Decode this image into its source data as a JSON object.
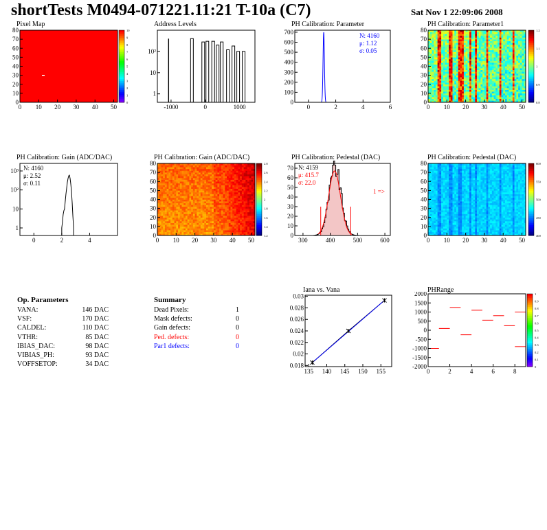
{
  "header": {
    "title": "shortTests M0494-071221.11:21 T-10a (C7)",
    "date": "Sat Nov  1 22:09:06 2008"
  },
  "colors": {
    "frame": "#000000",
    "line_blue": "#0000ff",
    "line_red": "#ff0000",
    "fill_red": "#ff0000"
  },
  "chart_data": [
    {
      "id": "pixel_map",
      "type": "heatmap",
      "title": "Pixel Map",
      "xlim": [
        0,
        52
      ],
      "ylim": [
        0,
        80
      ],
      "xticks": [
        "0",
        "10",
        "20",
        "30",
        "40",
        "50"
      ],
      "yticks": [
        "0",
        "10",
        "20",
        "30",
        "40",
        "50",
        "60",
        "70",
        "80"
      ],
      "zticks": [
        "0",
        "1",
        "2",
        "3",
        "4",
        "5",
        "6",
        "7",
        "8",
        "9",
        "10"
      ],
      "value": 10
    },
    {
      "id": "address_levels",
      "type": "bar",
      "title": "Address Levels",
      "log_y": true,
      "xticks": [
        "-1000",
        "0",
        "1000"
      ],
      "yticks": [
        "1",
        "10",
        "10²"
      ],
      "peaks": [
        {
          "x": -450,
          "y": 400
        },
        {
          "x": -120,
          "y": 280
        },
        {
          "x": 0,
          "y": 300
        },
        {
          "x": 170,
          "y": 300
        },
        {
          "x": 300,
          "y": 200
        },
        {
          "x": 420,
          "y": 280
        },
        {
          "x": 600,
          "y": 120
        },
        {
          "x": 760,
          "y": 180
        },
        {
          "x": 900,
          "y": 100
        },
        {
          "x": 1060,
          "y": 100
        }
      ]
    },
    {
      "id": "ph_param",
      "type": "bar",
      "title": "PH Calibration: Parameter",
      "xlim": [
        -1,
        6
      ],
      "ylim": [
        0,
        720
      ],
      "xticks": [
        "0",
        "2",
        "4",
        "6"
      ],
      "yticks": [
        "0",
        "100",
        "200",
        "300",
        "400",
        "500",
        "600",
        "700"
      ],
      "stats": {
        "n": "N: 4160",
        "mu": "μ: 1.12",
        "sigma": "σ: 0.05"
      },
      "peak": {
        "mean": 1.12,
        "sigma": 0.05,
        "height": 700
      }
    },
    {
      "id": "ph_param1",
      "type": "heatmap",
      "title": "PH Calibration: Parameter1",
      "xlim": [
        0,
        52
      ],
      "ylim": [
        0,
        80
      ],
      "xticks": [
        "0",
        "10",
        "20",
        "30",
        "40",
        "50"
      ],
      "yticks": [
        "0",
        "10",
        "20",
        "30",
        "40",
        "50",
        "60",
        "70",
        "80"
      ],
      "zticks": [
        "0.8",
        "0.9",
        "1",
        "1.1",
        "1.2"
      ]
    },
    {
      "id": "ph_gain_hist",
      "type": "line",
      "title": "PH Calibration: Gain (ADC/DAC)",
      "log_y": true,
      "xticks": [
        "0",
        "2",
        "4"
      ],
      "yticks": [
        "1",
        "10",
        "10²",
        "10³"
      ],
      "stats": {
        "n": "N: 4160",
        "mu": "μ: 2.52",
        "sigma": "σ: 0.11"
      }
    },
    {
      "id": "ph_gain_map",
      "type": "heatmap",
      "title": "PH Calibration: Gain (ADC/DAC)",
      "xlim": [
        0,
        52
      ],
      "ylim": [
        0,
        80
      ],
      "xticks": [
        "0",
        "10",
        "20",
        "30",
        "40",
        "50"
      ],
      "yticks": [
        "0",
        "10",
        "20",
        "30",
        "40",
        "50",
        "60",
        "70",
        "80"
      ],
      "zticks": [
        "1.2",
        "1.4",
        "1.6",
        "1.8",
        "2",
        "2.2",
        "2.4",
        "2.6",
        "2.8"
      ]
    },
    {
      "id": "ph_ped_hist",
      "type": "bar",
      "title": "PH Calibration: Pedestal (DAC)",
      "xlim": [
        270,
        620
      ],
      "ylim": [
        0,
        75
      ],
      "xticks": [
        "300",
        "400",
        "500",
        "600"
      ],
      "yticks": [
        "0",
        "10",
        "20",
        "30",
        "40",
        "50",
        "60",
        "70"
      ],
      "stats": {
        "n": "N: 4159",
        "mu": "μ: 415.7",
        "sigma": "σ: 22.0"
      },
      "arrow": "1 =>",
      "peak": {
        "mean": 415.7,
        "sigma": 22.0,
        "height": 70
      }
    },
    {
      "id": "ph_ped_map",
      "type": "heatmap",
      "title": "PH Calibration: Pedestal (DAC)",
      "xlim": [
        0,
        52
      ],
      "ylim": [
        0,
        80
      ],
      "xticks": [
        "0",
        "10",
        "20",
        "30",
        "40",
        "50"
      ],
      "yticks": [
        "0",
        "10",
        "20",
        "30",
        "40",
        "50",
        "60",
        "70",
        "80"
      ],
      "zticks": [
        "400",
        "450",
        "500",
        "550",
        "600"
      ]
    },
    {
      "id": "iana_vana",
      "type": "line",
      "title": "Iana vs. Vana",
      "xlim": [
        134,
        158
      ],
      "ylim": [
        0.0178,
        0.0302
      ],
      "xticks": [
        "135",
        "140",
        "145",
        "150",
        "155"
      ],
      "yticks": [
        "0.018",
        "0.02",
        "0.022",
        "0.024",
        "0.026",
        "0.028",
        "0.03"
      ],
      "x": [
        136,
        146,
        156
      ],
      "y": [
        0.0185,
        0.024,
        0.0293
      ]
    },
    {
      "id": "ph_range",
      "type": "line",
      "title": "PHRange",
      "xlim": [
        0,
        9
      ],
      "ylim": [
        -2000,
        2000
      ],
      "xticks": [
        "0",
        "2",
        "4",
        "6",
        "8"
      ],
      "yticks": [
        "-2000",
        "-1500",
        "-1000",
        "-500",
        "0",
        "500",
        "1000",
        "1500",
        "2000"
      ],
      "zticks": [
        "0",
        "0.1",
        "0.2",
        "0.3",
        "0.4",
        "0.5",
        "0.6",
        "0.7",
        "0.8",
        "0.9",
        "1"
      ],
      "segments": [
        {
          "x": 0,
          "y": -1000
        },
        {
          "x": 1,
          "y": 100
        },
        {
          "x": 2,
          "y": 1250
        },
        {
          "x": 3,
          "y": -250
        },
        {
          "x": 4,
          "y": 1100
        },
        {
          "x": 5,
          "y": 550
        },
        {
          "x": 6,
          "y": 800
        },
        {
          "x": 7,
          "y": 250
        },
        {
          "x": 8,
          "y": 1000
        },
        {
          "x": 8,
          "y": -900
        }
      ]
    }
  ],
  "op_params": {
    "title": "Op. Parameters",
    "rows": [
      {
        "name": "VANA:",
        "value": "146 DAC"
      },
      {
        "name": "VSF:",
        "value": "170 DAC"
      },
      {
        "name": "CALDEL:",
        "value": "110 DAC"
      },
      {
        "name": "VTHR:",
        "value": "85 DAC"
      },
      {
        "name": "IBIAS_DAC:",
        "value": "98 DAC"
      },
      {
        "name": "VIBIAS_PH:",
        "value": "93 DAC"
      },
      {
        "name": "VOFFSETOP:",
        "value": "34 DAC"
      }
    ]
  },
  "summary": {
    "title": "Summary",
    "rows": [
      {
        "name": "Dead Pixels:",
        "value": "1",
        "color": "#000000"
      },
      {
        "name": "Mask defects:",
        "value": "0",
        "color": "#000000"
      },
      {
        "name": "Gain defects:",
        "value": "0",
        "color": "#000000"
      },
      {
        "name": "Ped. defects:",
        "value": "0",
        "color": "#ff0000"
      },
      {
        "name": "Par1 defects:",
        "value": "0",
        "color": "#0000ff"
      }
    ]
  }
}
